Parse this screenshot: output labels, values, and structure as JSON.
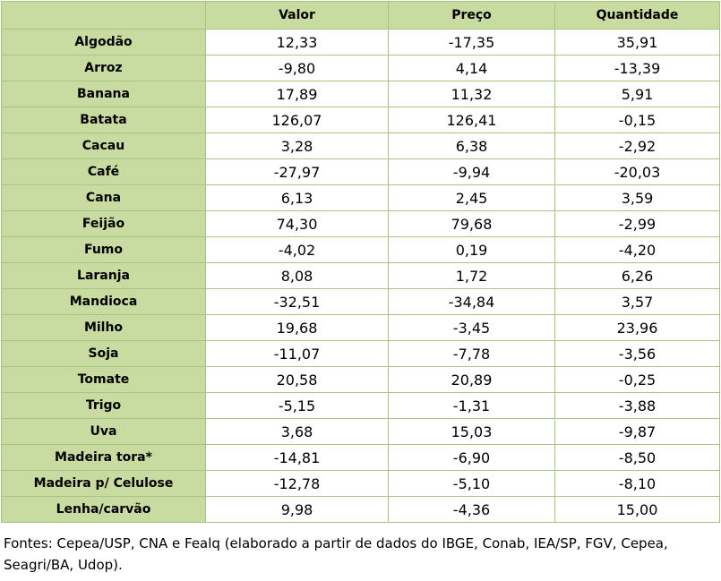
{
  "table": {
    "columns": [
      "",
      "Valor",
      "Preço",
      "Quantidade"
    ],
    "rows": [
      {
        "label": "Algodão",
        "valor": "12,33",
        "preco": "-17,35",
        "quantidade": "35,91"
      },
      {
        "label": "Arroz",
        "valor": "-9,80",
        "preco": "4,14",
        "quantidade": "-13,39"
      },
      {
        "label": "Banana",
        "valor": "17,89",
        "preco": "11,32",
        "quantidade": "5,91"
      },
      {
        "label": "Batata",
        "valor": "126,07",
        "preco": "126,41",
        "quantidade": "-0,15"
      },
      {
        "label": "Cacau",
        "valor": "3,28",
        "preco": "6,38",
        "quantidade": "-2,92"
      },
      {
        "label": "Café",
        "valor": "-27,97",
        "preco": "-9,94",
        "quantidade": "-20,03"
      },
      {
        "label": "Cana",
        "valor": "6,13",
        "preco": "2,45",
        "quantidade": "3,59"
      },
      {
        "label": "Feijão",
        "valor": "74,30",
        "preco": "79,68",
        "quantidade": "-2,99"
      },
      {
        "label": "Fumo",
        "valor": "-4,02",
        "preco": "0,19",
        "quantidade": "-4,20"
      },
      {
        "label": "Laranja",
        "valor": "8,08",
        "preco": "1,72",
        "quantidade": "6,26"
      },
      {
        "label": "Mandioca",
        "valor": "-32,51",
        "preco": "-34,84",
        "quantidade": "3,57"
      },
      {
        "label": "Milho",
        "valor": "19,68",
        "preco": "-3,45",
        "quantidade": "23,96"
      },
      {
        "label": "Soja",
        "valor": "-11,07",
        "preco": "-7,78",
        "quantidade": "-3,56"
      },
      {
        "label": "Tomate",
        "valor": "20,58",
        "preco": "20,89",
        "quantidade": "-0,25"
      },
      {
        "label": "Trigo",
        "valor": "-5,15",
        "preco": "-1,31",
        "quantidade": "-3,88"
      },
      {
        "label": "Uva",
        "valor": "3,68",
        "preco": "15,03",
        "quantidade": "-9,87"
      },
      {
        "label": "Madeira tora*",
        "valor": "-14,81",
        "preco": "-6,90",
        "quantidade": "-8,50"
      },
      {
        "label": "Madeira p/ Celulose",
        "valor": "-12,78",
        "preco": "-5,10",
        "quantidade": "-8,10"
      },
      {
        "label": "Lenha/carvão",
        "valor": "9,98",
        "preco": "-4,36",
        "quantidade": "15,00"
      }
    ]
  },
  "footnote": "Fontes: Cepea/USP, CNA e Fealq (elaborado a partir de dados do IBGE, Conab, IEA/SP, FGV, Cepea, Seagri/BA, Udop).",
  "colors": {
    "header_fill": "#c8dba0",
    "border": "#a7c57e",
    "cell_fill": "#ffffff"
  }
}
